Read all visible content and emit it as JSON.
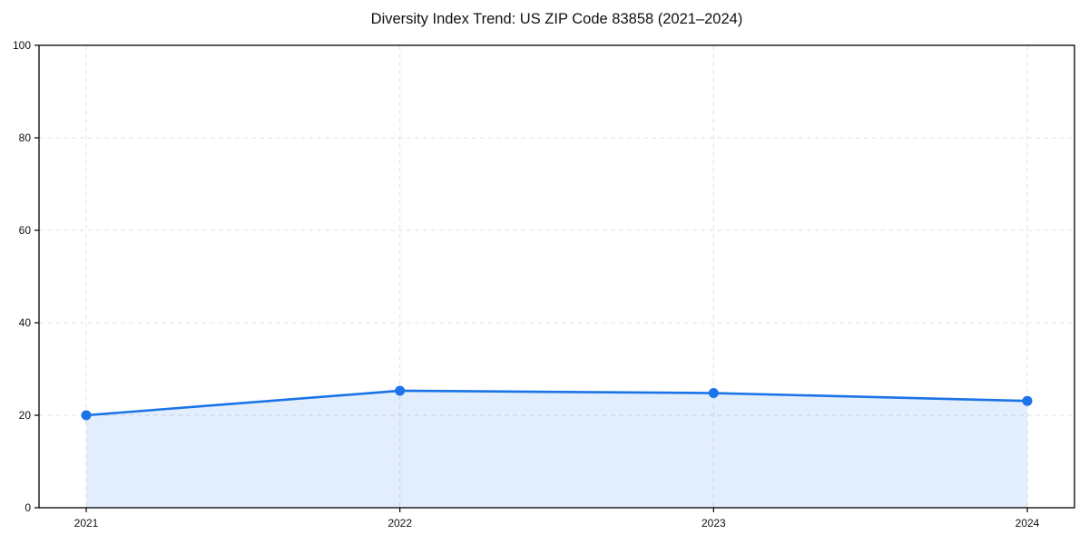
{
  "chart_data": {
    "type": "area",
    "title": "Diversity Index Trend: US ZIP Code 83858 (2021–2024)",
    "x": [
      "2021",
      "2022",
      "2023",
      "2024"
    ],
    "values": [
      20.0,
      25.3,
      24.8,
      23.1
    ],
    "series": [
      {
        "name": "Diversity Index",
        "values": [
          20.0,
          25.3,
          24.8,
          23.1
        ]
      }
    ],
    "xlabel": "",
    "ylabel": "",
    "ylim": [
      0,
      100
    ],
    "yticks": [
      0,
      20,
      40,
      60,
      80,
      100
    ],
    "grid": "dashed, horizontal and vertical",
    "legend_position": "none",
    "line_color": "#1a73e8",
    "fill_color": "rgba(26,115,232,0.12)",
    "grid_color": "#e0e0e0",
    "spine_color": "#000000",
    "background_color": "#ffffff"
  }
}
